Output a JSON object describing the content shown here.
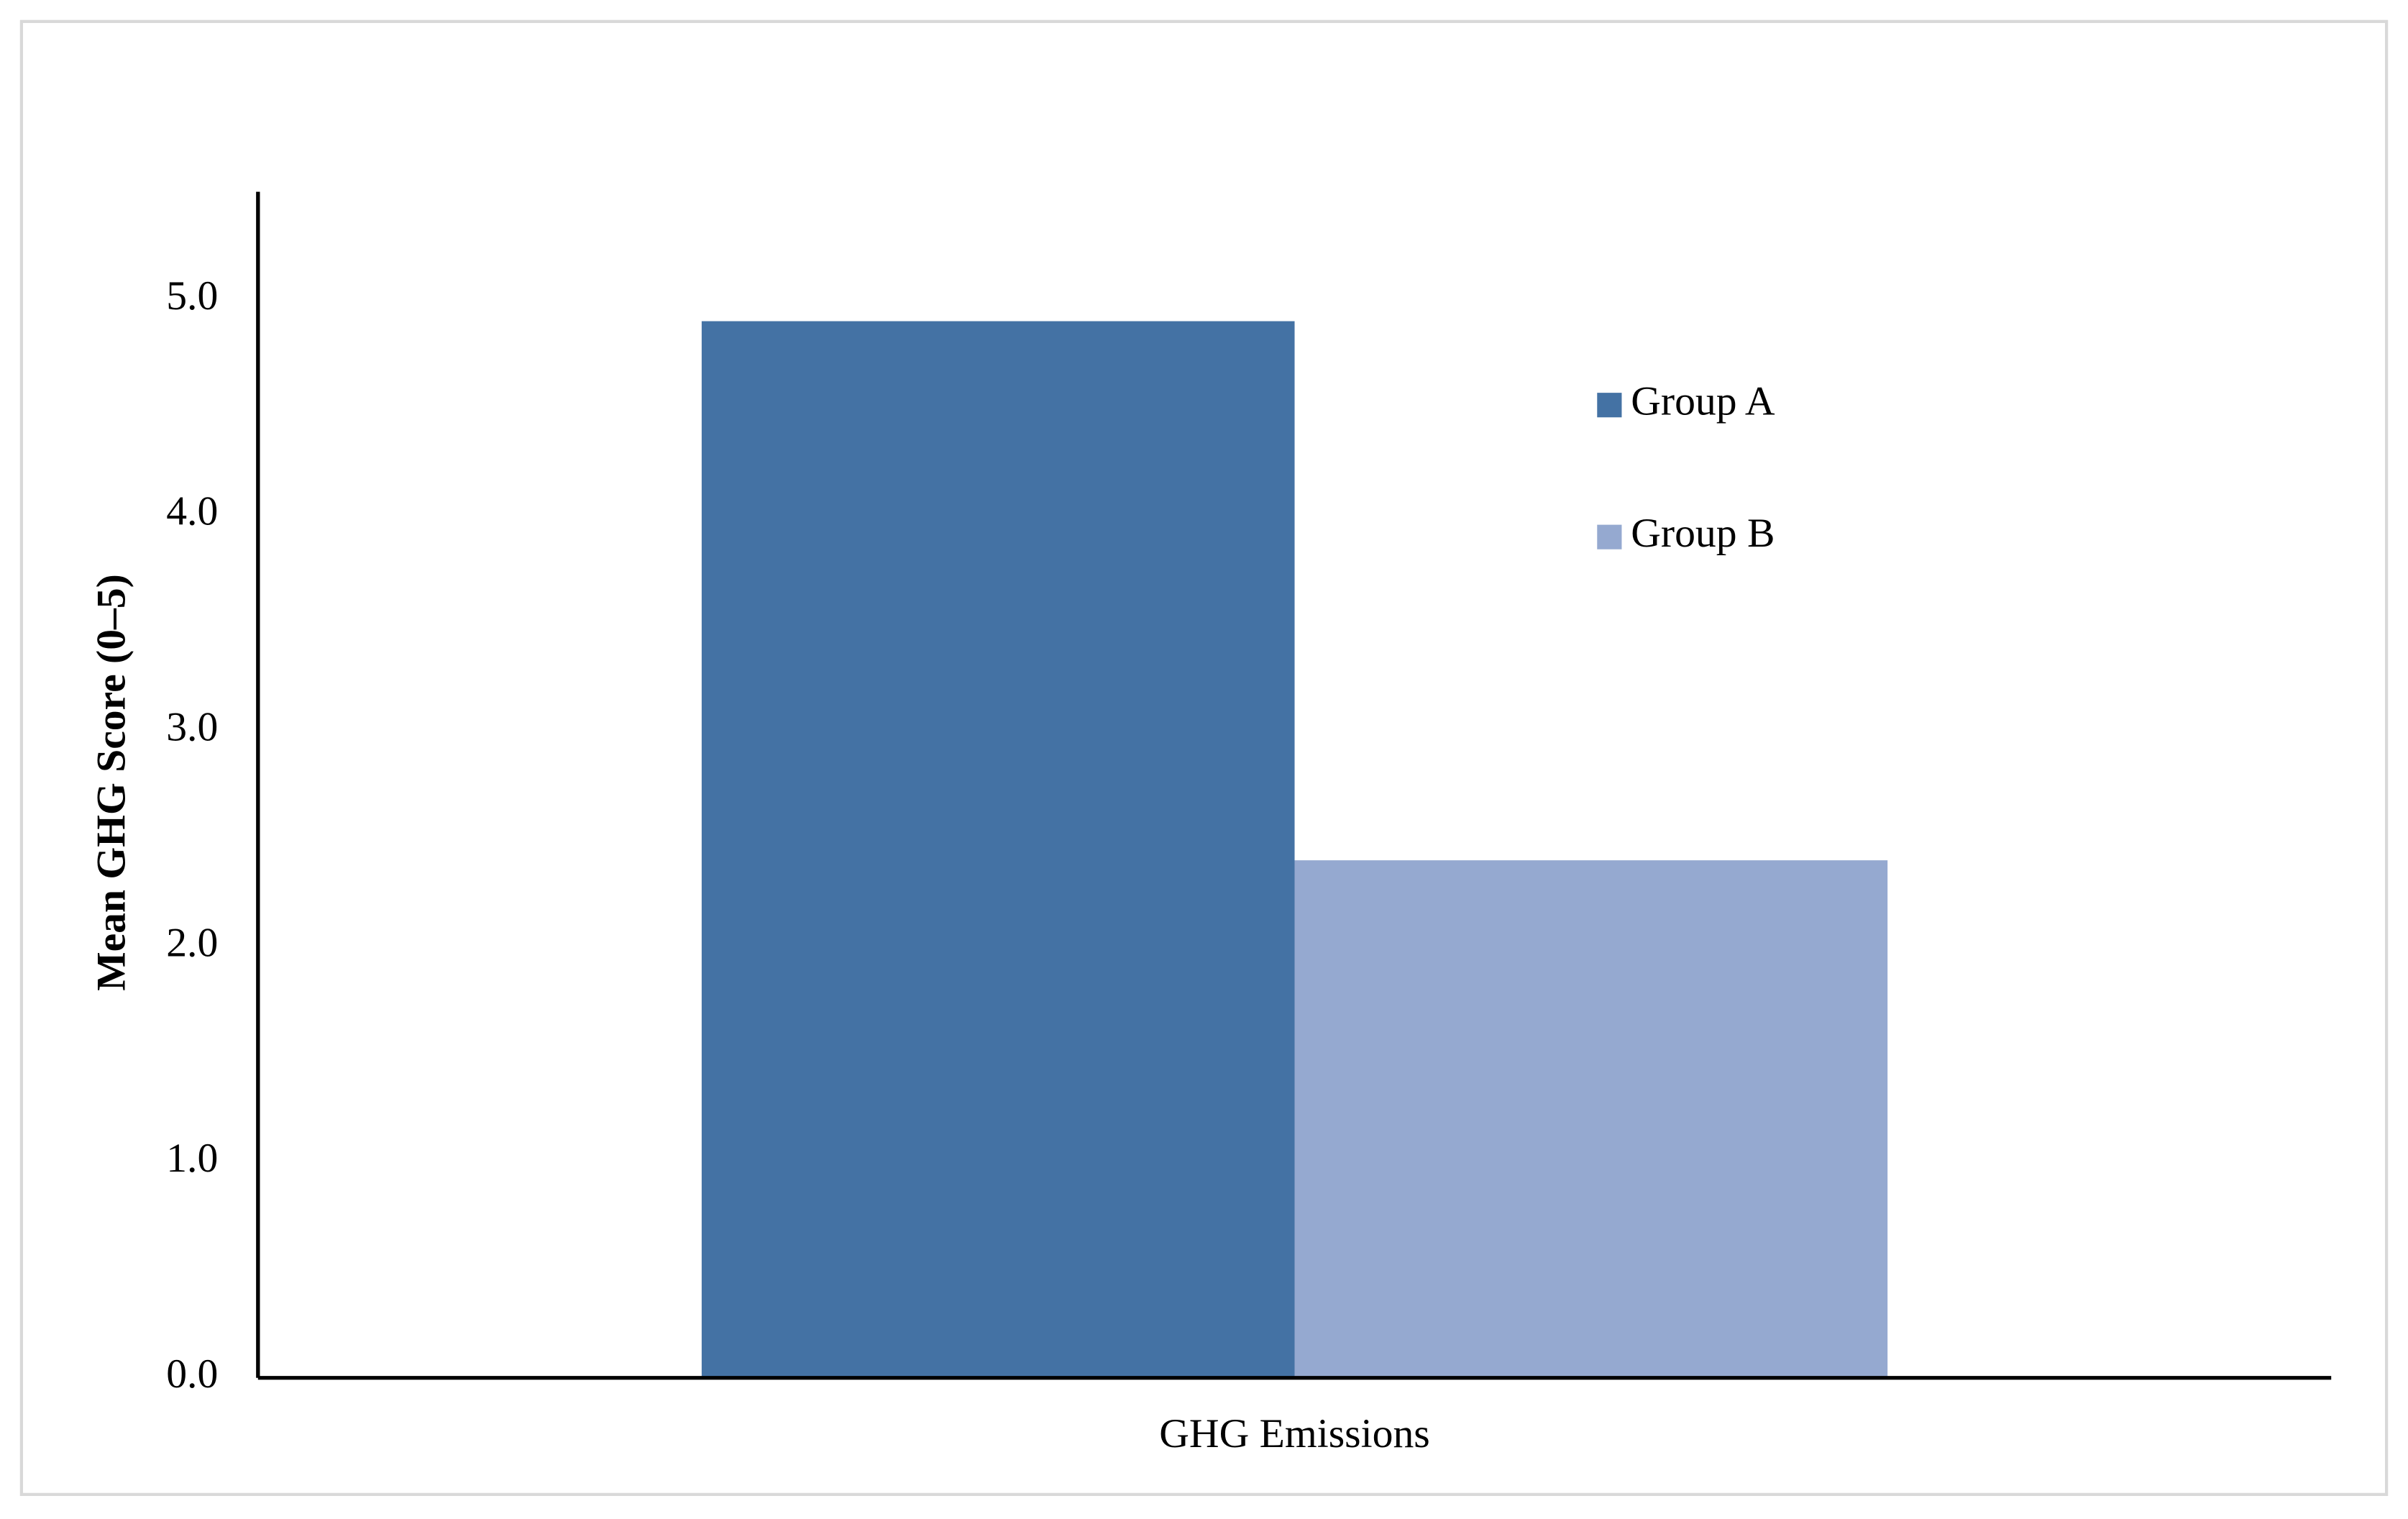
{
  "chart_data": {
    "type": "bar",
    "y_label": "Mean GHG Score (0–5)",
    "categories": [
      "GHG Emissions"
    ],
    "series": [
      {
        "name": "Group A",
        "color": "#4472a4",
        "values": [
          4.9
        ]
      },
      {
        "name": "Group B",
        "color": "#95a9d0",
        "values": [
          2.4
        ]
      }
    ],
    "ylim": [
      0,
      5.5
    ],
    "yticks": [
      {
        "value": 0,
        "label": "0.0"
      },
      {
        "value": 1,
        "label": "1.0"
      },
      {
        "value": 2,
        "label": "2.0"
      },
      {
        "value": 3,
        "label": "3.0"
      },
      {
        "value": 4,
        "label": "4.0"
      },
      {
        "value": 5,
        "label": "5.0"
      }
    ],
    "grid": false,
    "legend": "right"
  }
}
